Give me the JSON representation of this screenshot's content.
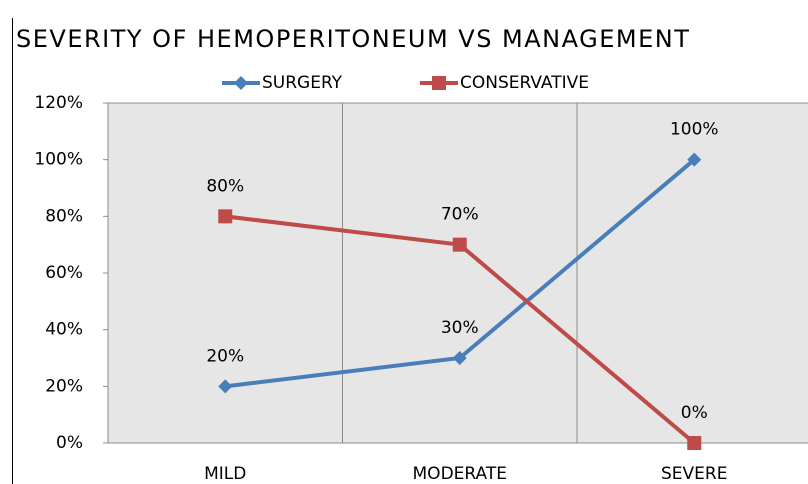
{
  "chart_data": {
    "type": "line",
    "title": "SEVERITY OF HEMOPERITONEUM VS MANAGEMENT",
    "categories": [
      "MILD",
      "MODERATE",
      "SEVERE"
    ],
    "series": [
      {
        "name": "SURGERY",
        "color": "#4a7ebb",
        "marker": "diamond",
        "values": [
          20,
          30,
          100
        ],
        "value_labels": [
          "20%",
          "30%",
          "100%"
        ]
      },
      {
        "name": "CONSERVATIVE",
        "color": "#be4b48",
        "marker": "square",
        "values": [
          80,
          70,
          0
        ],
        "value_labels": [
          "80%",
          "70%",
          "0%"
        ]
      }
    ],
    "ylim": [
      0,
      120
    ],
    "yticks": [
      {
        "value": 0,
        "label": "0%"
      },
      {
        "value": 20,
        "label": "20%"
      },
      {
        "value": 40,
        "label": "40%"
      },
      {
        "value": 60,
        "label": "60%"
      },
      {
        "value": 80,
        "label": "80%"
      },
      {
        "value": 100,
        "label": "100%"
      },
      {
        "value": 120,
        "label": "120%"
      }
    ],
    "legend": "top",
    "grid": "vertical"
  }
}
